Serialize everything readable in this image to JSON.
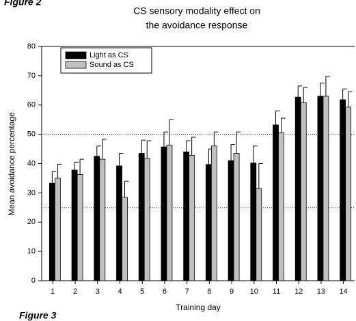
{
  "figure_label_top": "Figure 2",
  "figure_label_bottom": "Figure 3",
  "chart_data": {
    "type": "bar",
    "title": [
      "CS sensory modality effect on",
      "the avoidance response"
    ],
    "x_label": "Training day",
    "y_label": "Mean avoidance percentage",
    "categories": [
      "1",
      "2",
      "3",
      "4",
      "5",
      "6",
      "7",
      "8",
      "9",
      "10",
      "11",
      "12",
      "13",
      "14"
    ],
    "series": [
      {
        "name": "Light as CS",
        "color": "#000000",
        "values": [
          33.3,
          37.8,
          42.5,
          39.2,
          43.5,
          45.7,
          44,
          39.7,
          41,
          40.2,
          53.2,
          62.7,
          63,
          61.8
        ],
        "errors": [
          4,
          2.7,
          3.5,
          4.3,
          4.5,
          5.1,
          3.8,
          5.3,
          5.5,
          5.8,
          4.8,
          3.8,
          4.5,
          3.7
        ]
      },
      {
        "name": "Sound as CS",
        "color": "#c0c0c0",
        "values": [
          35,
          36.3,
          41.5,
          28.5,
          41.8,
          46.3,
          42.8,
          46,
          43.5,
          31.5,
          50.5,
          60.8,
          63,
          59.3
        ],
        "errors": [
          4.8,
          5.2,
          6.8,
          5.5,
          6,
          8.7,
          6.2,
          4.8,
          7.3,
          8.5,
          5,
          5.2,
          6.8,
          5.2
        ]
      }
    ],
    "ylim": [
      0,
      80
    ],
    "yticks": [
      0,
      10,
      20,
      30,
      40,
      50,
      60,
      70,
      80
    ],
    "reference_lines": [
      25,
      50
    ],
    "legend": "upper left"
  }
}
